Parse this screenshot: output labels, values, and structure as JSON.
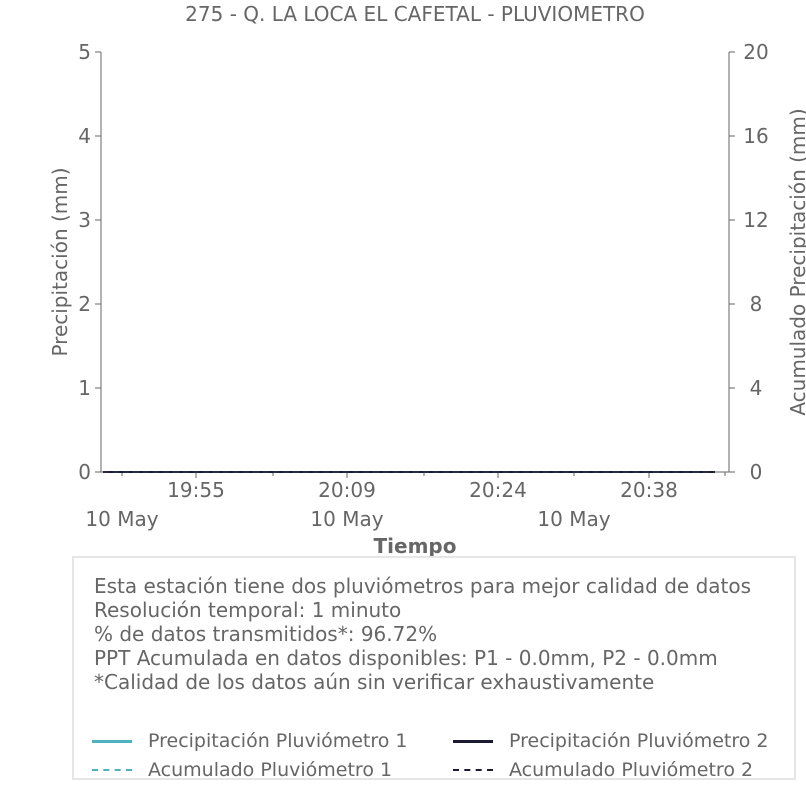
{
  "chart_data": {
    "type": "line",
    "title": "275 - Q. LA LOCA EL CAFETAL - PLUVIOMETRO",
    "xlabel": "Tiempo",
    "ylabel": "Precipitación (mm)",
    "y2label": "Acumulado Precipitación (mm)",
    "ylim": [
      0,
      5
    ],
    "y2lim": [
      0,
      20
    ],
    "yticks": [
      "0",
      "1",
      "2",
      "3",
      "4",
      "5"
    ],
    "y2ticks": [
      "0",
      "4",
      "8",
      "12",
      "16",
      "20"
    ],
    "xticks": [
      {
        "time": "19:55",
        "date": "10 May"
      },
      {
        "time": "20:09",
        "date": "10 May"
      },
      {
        "time": "20:24",
        "date": "10 May"
      },
      {
        "time": "20:38",
        "date": ""
      }
    ],
    "series": [
      {
        "name": "Precipitación Pluviómetro 1",
        "axis": "left",
        "color": "#4fb3bf",
        "style": "solid",
        "values": [
          0,
          0
        ]
      },
      {
        "name": "Precipitación Pluviómetro 2",
        "axis": "left",
        "color": "#1a1a33",
        "style": "solid",
        "values": [
          0,
          0
        ]
      },
      {
        "name": "Acumulado Pluviómetro 1",
        "axis": "right",
        "color": "#4fb3bf",
        "style": "dashed",
        "values": [
          0,
          0
        ]
      },
      {
        "name": "Acumulado Pluviómetro 2",
        "axis": "right",
        "color": "#1a1a33",
        "style": "dashed",
        "values": [
          0,
          0
        ]
      }
    ],
    "grid": false,
    "legend": "bottom"
  },
  "info": {
    "lines": [
      "Esta estación tiene dos pluviómetros para mejor calidad de datos",
      "Resolución temporal: 1 minuto",
      "% de datos transmitidos*: 96.72%",
      "PPT Acumulada en datos disponibles: P1 - 0.0mm, P2 - 0.0mm",
      "*Calidad de los datos aún sin verificar exhaustivamente"
    ]
  }
}
